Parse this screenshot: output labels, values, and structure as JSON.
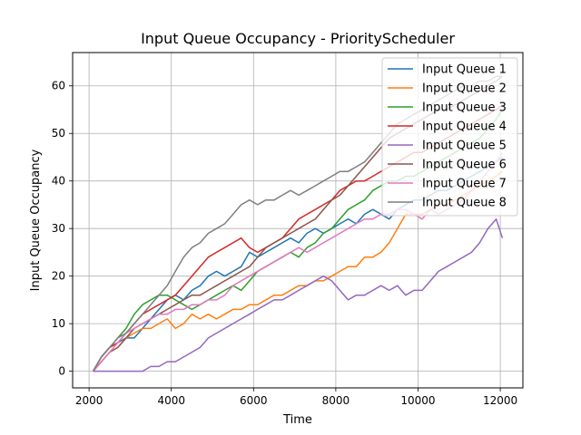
{
  "chart_data": {
    "type": "line",
    "title": "Input Queue Occupancy - PriorityScheduler",
    "xlabel": "Time",
    "ylabel": "Input Queue Occupancy",
    "xlim": [
      1600,
      12550
    ],
    "ylim": [
      -3.5,
      67
    ],
    "xticks": [
      2000,
      4000,
      6000,
      8000,
      10000,
      12000
    ],
    "yticks": [
      0,
      10,
      20,
      30,
      40,
      50,
      60
    ],
    "grid": true,
    "legend_position": "top-right",
    "series": [
      {
        "name": "Input Queue 1",
        "color": "#1f77b4",
        "x": [
          2100,
          2300,
          2500,
          2700,
          2900,
          3100,
          3300,
          3500,
          3700,
          3900,
          4100,
          4300,
          4500,
          4700,
          4900,
          5100,
          5300,
          5500,
          5700,
          5900,
          6100,
          6300,
          6500,
          6700,
          6900,
          7100,
          7300,
          7500,
          7700,
          7900,
          8100,
          8300,
          8500,
          8700,
          8900,
          9100,
          9300,
          9500,
          9700,
          9900,
          10100,
          10300,
          10500,
          10700,
          10900,
          11100,
          11300,
          11500,
          11700,
          11900,
          12050
        ],
        "y": [
          0,
          3,
          5,
          6,
          7,
          7,
          9,
          11,
          13,
          15,
          16,
          15,
          17,
          18,
          20,
          21,
          20,
          21,
          22,
          25,
          24,
          25,
          26,
          27,
          28,
          27,
          29,
          30,
          29,
          30,
          31,
          32,
          31,
          33,
          34,
          33,
          32,
          34,
          35,
          36,
          36,
          37,
          38,
          38,
          39,
          40,
          41,
          42,
          43,
          44,
          45
        ]
      },
      {
        "name": "Input Queue 2",
        "color": "#ff7f0e",
        "x": [
          2100,
          2300,
          2500,
          2700,
          2900,
          3100,
          3300,
          3500,
          3700,
          3900,
          4100,
          4300,
          4500,
          4700,
          4900,
          5100,
          5300,
          5500,
          5700,
          5900,
          6100,
          6300,
          6500,
          6700,
          6900,
          7100,
          7300,
          7500,
          7700,
          7900,
          8100,
          8300,
          8500,
          8700,
          8900,
          9100,
          9300,
          9500,
          9700,
          9900,
          10100,
          10300,
          10500,
          10700,
          10900,
          11100,
          11300,
          11500,
          11700,
          11900,
          12050
        ],
        "y": [
          0,
          2,
          4,
          5,
          7,
          8,
          9,
          9,
          10,
          11,
          9,
          10,
          12,
          11,
          12,
          11,
          12,
          13,
          13,
          14,
          14,
          15,
          16,
          16,
          17,
          18,
          18,
          19,
          19,
          20,
          21,
          22,
          22,
          24,
          24,
          25,
          27,
          30,
          33,
          33,
          33,
          34,
          35,
          35,
          36,
          37,
          38,
          39,
          40,
          41,
          42
        ]
      },
      {
        "name": "Input Queue 3",
        "color": "#2ca02c",
        "x": [
          2100,
          2300,
          2500,
          2700,
          2900,
          3100,
          3300,
          3500,
          3700,
          3900,
          4100,
          4300,
          4500,
          4700,
          4900,
          5100,
          5300,
          5500,
          5700,
          5900,
          6100,
          6300,
          6500,
          6700,
          6900,
          7100,
          7300,
          7500,
          7700,
          7900,
          8100,
          8300,
          8500,
          8700,
          8900,
          9100,
          9300,
          9500,
          9700,
          9900,
          10100,
          10300,
          10500,
          10700,
          10900,
          11100,
          11300,
          11500,
          11700,
          11900,
          12050
        ],
        "y": [
          0,
          3,
          5,
          7,
          9,
          12,
          14,
          15,
          16,
          16,
          15,
          14,
          13,
          14,
          15,
          16,
          17,
          18,
          17,
          19,
          21,
          22,
          23,
          24,
          25,
          24,
          26,
          27,
          29,
          30,
          32,
          34,
          35,
          36,
          38,
          39,
          40,
          40,
          41,
          41,
          42,
          43,
          44,
          45,
          46,
          47,
          48,
          49,
          51,
          53,
          55
        ]
      },
      {
        "name": "Input Queue 4",
        "color": "#d62728",
        "x": [
          2100,
          2300,
          2500,
          2700,
          2900,
          3100,
          3300,
          3500,
          3700,
          3900,
          4100,
          4300,
          4500,
          4700,
          4900,
          5100,
          5300,
          5500,
          5700,
          5900,
          6100,
          6300,
          6500,
          6700,
          6900,
          7100,
          7300,
          7500,
          7700,
          7900,
          8100,
          8300,
          8500,
          8700,
          8900,
          9100,
          9300,
          9500,
          9700,
          9900,
          10100,
          10300,
          10500,
          10700,
          10900,
          11100,
          11300,
          11500,
          11700,
          11900,
          12050
        ],
        "y": [
          0,
          3,
          5,
          6,
          8,
          10,
          12,
          13,
          14,
          15,
          16,
          18,
          20,
          22,
          24,
          25,
          26,
          27,
          28,
          26,
          25,
          26,
          27,
          28,
          30,
          32,
          33,
          34,
          35,
          36,
          38,
          39,
          40,
          40,
          41,
          42,
          43,
          44,
          45,
          46,
          46,
          47,
          48,
          49,
          50,
          51,
          52,
          53,
          54,
          55,
          56
        ]
      },
      {
        "name": "Input Queue 5",
        "color": "#9467bd",
        "x": [
          2100,
          2300,
          2500,
          2700,
          2900,
          3100,
          3300,
          3500,
          3700,
          3900,
          4100,
          4300,
          4500,
          4700,
          4900,
          5100,
          5300,
          5500,
          5700,
          5900,
          6100,
          6300,
          6500,
          6700,
          6900,
          7100,
          7300,
          7500,
          7700,
          7900,
          8100,
          8300,
          8500,
          8700,
          8900,
          9100,
          9300,
          9500,
          9700,
          9900,
          10100,
          10300,
          10500,
          10700,
          10900,
          11100,
          11300,
          11500,
          11700,
          11900,
          12050
        ],
        "y": [
          0,
          0,
          0,
          0,
          0,
          0,
          0,
          1,
          1,
          2,
          2,
          3,
          4,
          5,
          7,
          8,
          9,
          10,
          11,
          12,
          13,
          14,
          15,
          15,
          16,
          17,
          18,
          19,
          20,
          19,
          17,
          15,
          16,
          16,
          17,
          18,
          17,
          18,
          16,
          17,
          17,
          19,
          21,
          22,
          23,
          24,
          25,
          27,
          30,
          32,
          28
        ]
      },
      {
        "name": "Input Queue 6",
        "color": "#8c564b",
        "x": [
          2100,
          2300,
          2500,
          2700,
          2900,
          3100,
          3300,
          3500,
          3700,
          3900,
          4100,
          4300,
          4500,
          4700,
          4900,
          5100,
          5300,
          5500,
          5700,
          5900,
          6100,
          6300,
          6500,
          6700,
          6900,
          7100,
          7300,
          7500,
          7700,
          7900,
          8100,
          8300,
          8500,
          8700,
          8900,
          9100,
          9300,
          9500,
          9700,
          9900,
          10100,
          10300,
          10500,
          10700,
          10900,
          11100,
          11300,
          11500,
          11700,
          11900,
          12050
        ],
        "y": [
          0,
          2,
          4,
          5,
          7,
          9,
          10,
          11,
          12,
          13,
          14,
          15,
          16,
          16,
          17,
          18,
          19,
          20,
          21,
          22,
          24,
          26,
          27,
          28,
          29,
          30,
          31,
          32,
          34,
          36,
          37,
          39,
          41,
          43,
          45,
          47,
          49,
          50,
          51,
          52,
          53,
          54,
          55,
          55,
          56,
          57,
          58,
          59,
          60,
          61,
          62
        ]
      },
      {
        "name": "Input Queue 7",
        "color": "#e377c2",
        "x": [
          2100,
          2300,
          2500,
          2700,
          2900,
          3100,
          3300,
          3500,
          3700,
          3900,
          4100,
          4300,
          4500,
          4700,
          4900,
          5100,
          5300,
          5500,
          5700,
          5900,
          6100,
          6300,
          6500,
          6700,
          6900,
          7100,
          7300,
          7500,
          7700,
          7900,
          8100,
          8300,
          8500,
          8700,
          8900,
          9100,
          9300,
          9500,
          9700,
          9900,
          10100,
          10300,
          10500,
          10700,
          10900,
          11100,
          11300,
          11500,
          11700,
          11900,
          12050
        ],
        "y": [
          0,
          2,
          4,
          6,
          8,
          9,
          10,
          11,
          12,
          12,
          13,
          13,
          14,
          14,
          15,
          15,
          16,
          18,
          19,
          20,
          21,
          22,
          23,
          24,
          25,
          26,
          25,
          26,
          27,
          28,
          29,
          30,
          31,
          32,
          32,
          33,
          33,
          34,
          34,
          33,
          32,
          34,
          33,
          34,
          35,
          36,
          38,
          40,
          42,
          44,
          46
        ]
      },
      {
        "name": "Input Queue 8",
        "color": "#7f7f7f",
        "x": [
          2100,
          2300,
          2500,
          2700,
          2900,
          3100,
          3300,
          3500,
          3700,
          3900,
          4100,
          4300,
          4500,
          4700,
          4900,
          5100,
          5300,
          5500,
          5700,
          5900,
          6100,
          6300,
          6500,
          6700,
          6900,
          7100,
          7300,
          7500,
          7700,
          7900,
          8100,
          8300,
          8500,
          8700,
          8900,
          9100,
          9300,
          9500,
          9700,
          9900,
          10100,
          10300,
          10500,
          10700,
          10900,
          11100,
          11300,
          11500,
          11700,
          11900,
          12050
        ],
        "y": [
          0,
          3,
          5,
          7,
          8,
          10,
          12,
          14,
          16,
          18,
          21,
          24,
          26,
          27,
          29,
          30,
          31,
          33,
          35,
          36,
          35,
          36,
          36,
          37,
          38,
          37,
          38,
          39,
          40,
          41,
          42,
          42,
          43,
          44,
          46,
          48,
          50,
          52,
          53,
          54,
          55,
          56,
          57,
          58,
          59,
          60,
          60,
          61,
          61,
          62,
          62
        ]
      }
    ]
  }
}
